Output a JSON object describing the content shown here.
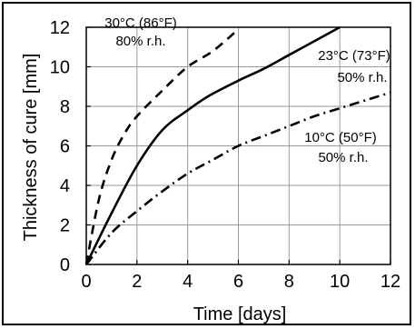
{
  "chart_data": {
    "type": "line",
    "xlabel": "Time [days]",
    "ylabel": "Thickness of cure [mm]",
    "xlim": [
      0,
      12
    ],
    "ylim": [
      0,
      12
    ],
    "x_ticks": [
      "0",
      "2",
      "4",
      "6",
      "8",
      "10",
      "12"
    ],
    "y_ticks": [
      "0",
      "2",
      "4",
      "6",
      "8",
      "10",
      "12"
    ],
    "grid": true,
    "series": [
      {
        "dash": "dashed",
        "color": "#000000",
        "label_lines": [
          "30°C (86°F)",
          "80% r.h."
        ],
        "points": [
          [
            0,
            0
          ],
          [
            0.5,
            3.3
          ],
          [
            1,
            5.3
          ],
          [
            1.5,
            6.6
          ],
          [
            2,
            7.5
          ],
          [
            3,
            8.8
          ],
          [
            4,
            10.0
          ],
          [
            5,
            10.8
          ],
          [
            6,
            11.9
          ]
        ]
      },
      {
        "dash": "solid",
        "color": "#000000",
        "label_lines": [
          "23°C (73°F)",
          "50% r.h."
        ],
        "points": [
          [
            0,
            0
          ],
          [
            1,
            2.6
          ],
          [
            2,
            5.0
          ],
          [
            3,
            6.8
          ],
          [
            4,
            7.8
          ],
          [
            4.8,
            8.5
          ],
          [
            6,
            9.3
          ],
          [
            7,
            9.9
          ],
          [
            8,
            10.6
          ],
          [
            9,
            11.3
          ],
          [
            10,
            12.0
          ]
        ]
      },
      {
        "dash": "dashdot",
        "color": "#000000",
        "label_lines": [
          "10°C (50°F)",
          "50% r.h."
        ],
        "points": [
          [
            0,
            0
          ],
          [
            1,
            1.6
          ],
          [
            2,
            2.7
          ],
          [
            3,
            3.7
          ],
          [
            4,
            4.6
          ],
          [
            5,
            5.3
          ],
          [
            6,
            6.0
          ],
          [
            7,
            6.5
          ],
          [
            8,
            7.0
          ],
          [
            9,
            7.5
          ],
          [
            10,
            7.9
          ],
          [
            11,
            8.3
          ],
          [
            12,
            8.7
          ]
        ]
      }
    ]
  }
}
